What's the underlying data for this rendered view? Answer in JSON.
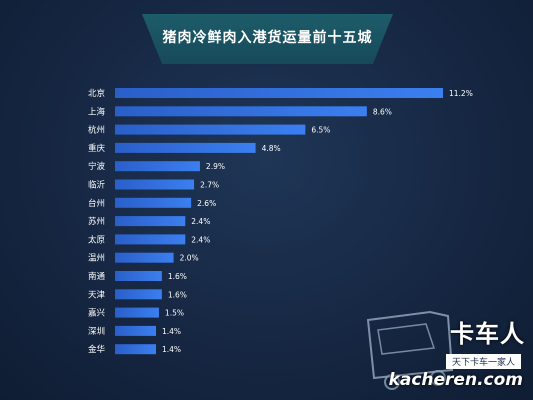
{
  "chart_data": {
    "type": "bar",
    "orientation": "horizontal",
    "title": "猪肉冷鲜肉入港货运量前十五城",
    "categories": [
      "北京",
      "上海",
      "杭州",
      "重庆",
      "宁波",
      "临沂",
      "台州",
      "苏州",
      "太原",
      "温州",
      "南通",
      "天津",
      "嘉兴",
      "深圳",
      "金华"
    ],
    "values": [
      11.2,
      8.6,
      6.5,
      4.8,
      2.9,
      2.7,
      2.6,
      2.4,
      2.4,
      2.0,
      1.6,
      1.6,
      1.5,
      1.4,
      1.4
    ],
    "labels": [
      "11.2%",
      "8.6%",
      "6.5%",
      "4.8%",
      "2.9%",
      "2.7%",
      "2.6%",
      "2.4%",
      "2.4%",
      "2.0%",
      "1.6%",
      "1.6%",
      "1.5%",
      "1.4%",
      "1.4%"
    ],
    "unit": "%",
    "xlim": [
      0,
      11.2
    ],
    "grid": false,
    "bar_color": "#2d6fe0"
  },
  "watermark": {
    "brand": "卡车人",
    "slogan": "天下卡车一家人",
    "url": "kacheren.com"
  }
}
